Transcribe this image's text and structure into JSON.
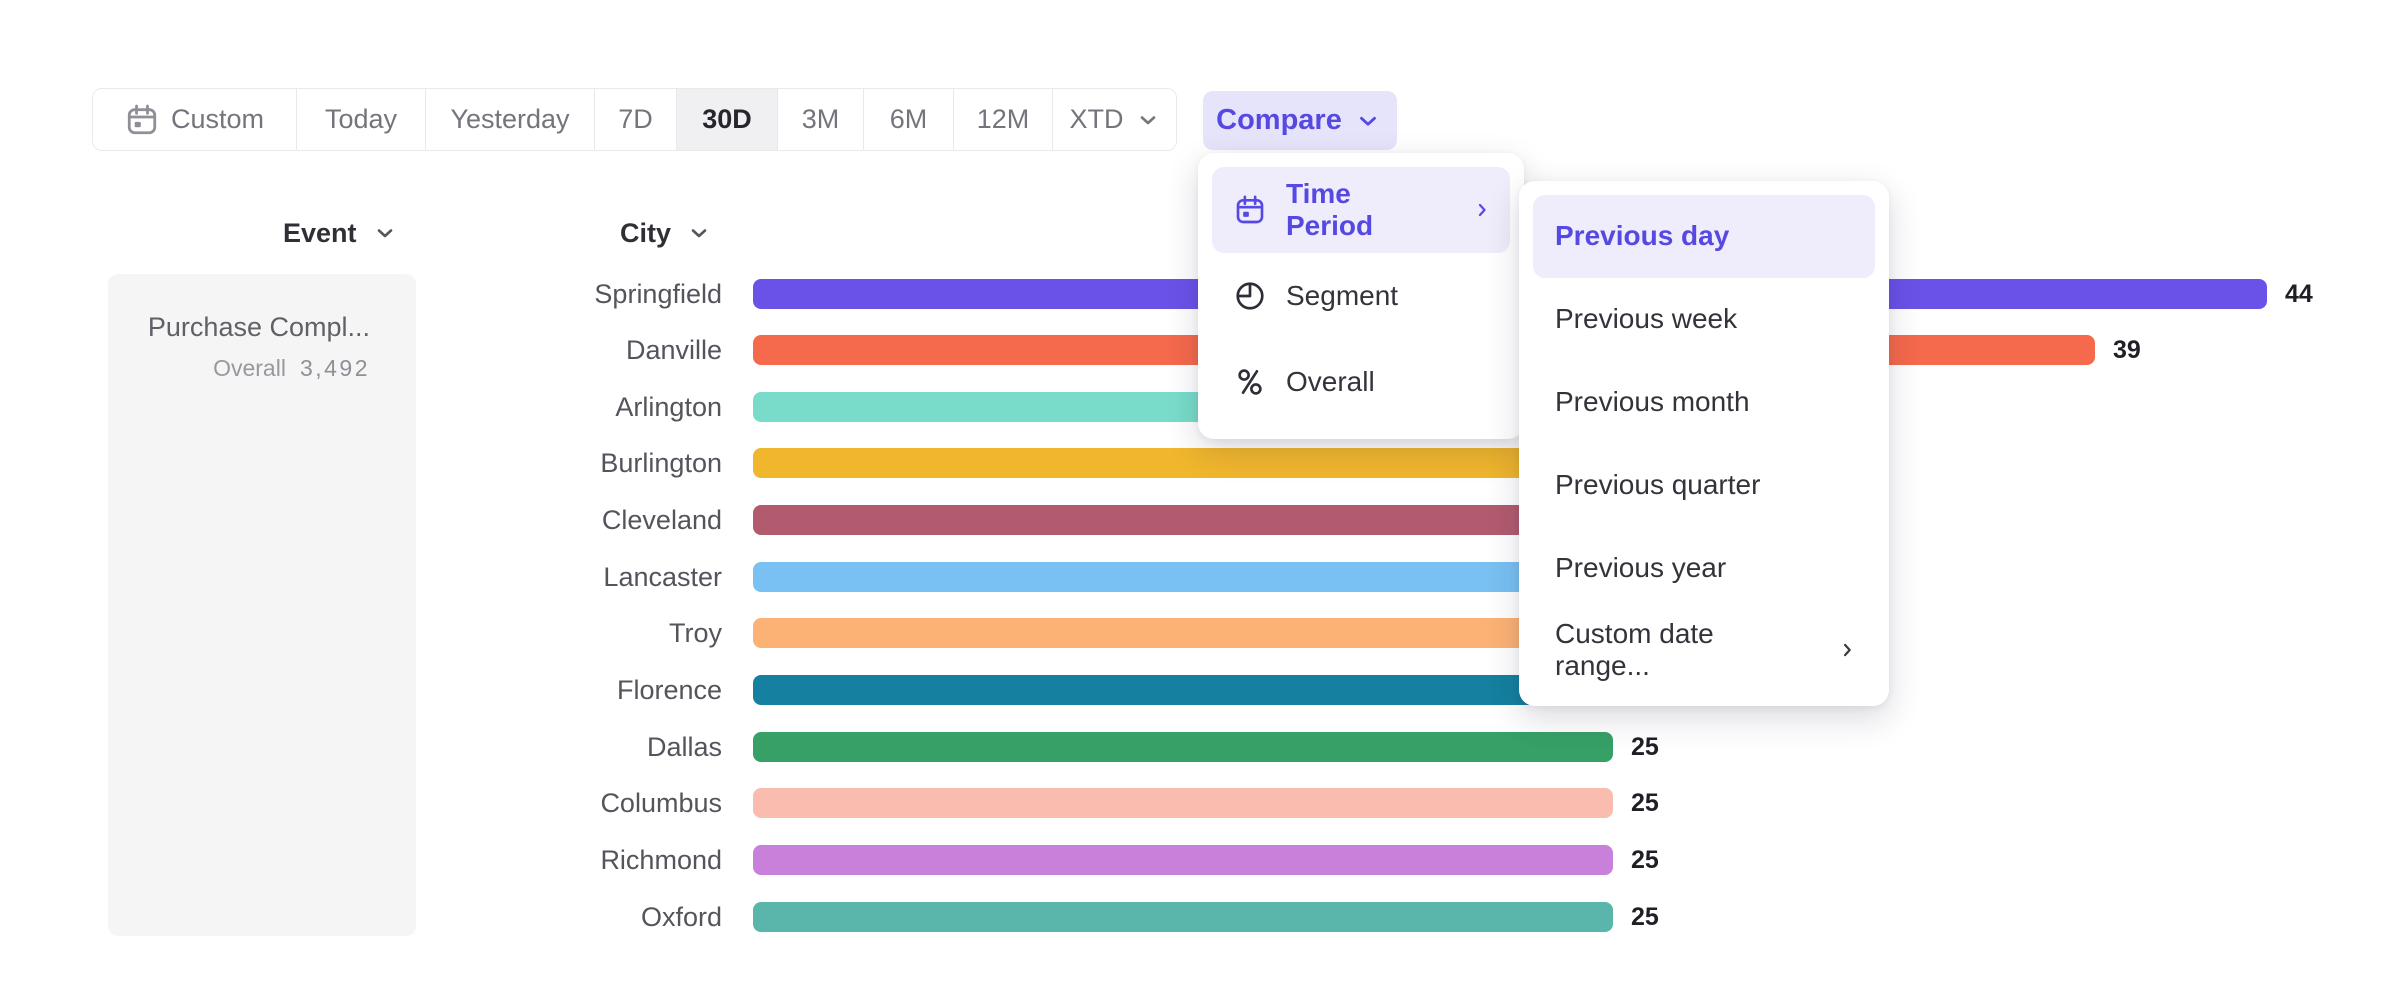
{
  "toolbar": {
    "date_ranges": [
      {
        "label": "Custom",
        "icon": "calendar",
        "selected": false,
        "dropdown": false
      },
      {
        "label": "Today",
        "selected": false,
        "dropdown": false
      },
      {
        "label": "Yesterday",
        "selected": false,
        "dropdown": false
      },
      {
        "label": "7D",
        "selected": false,
        "dropdown": false
      },
      {
        "label": "30D",
        "selected": true,
        "dropdown": false
      },
      {
        "label": "3M",
        "selected": false,
        "dropdown": false
      },
      {
        "label": "6M",
        "selected": false,
        "dropdown": false
      },
      {
        "label": "12M",
        "selected": false,
        "dropdown": false
      },
      {
        "label": "XTD",
        "selected": false,
        "dropdown": true
      }
    ],
    "compare_label": "Compare"
  },
  "event_panel": {
    "header": "Event",
    "event_name": "Purchase Compl...",
    "overall_label": "Overall",
    "overall_value": "3,492"
  },
  "chart_data": {
    "type": "bar",
    "orientation": "horizontal",
    "column_header": "City",
    "value_axis_visible": false,
    "categories": [
      "Springfield",
      "Danville",
      "Arlington",
      "Burlington",
      "Cleveland",
      "Lancaster",
      "Troy",
      "Florence",
      "Dallas",
      "Columbus",
      "Richmond",
      "Oxford"
    ],
    "bars": [
      {
        "city": "Springfield",
        "value": 44,
        "value_label": "44",
        "color": "#6a52e8",
        "end_occluded": false,
        "render_value": 44
      },
      {
        "city": "Danville",
        "value": 39,
        "value_label": "39",
        "color": "#f5694c",
        "end_occluded": false,
        "render_value": 39
      },
      {
        "city": "Arlington",
        "value": null,
        "value_label": "",
        "color": "#79dcca",
        "end_occluded": true,
        "render_value": 32
      },
      {
        "city": "Burlington",
        "value": null,
        "value_label": "",
        "color": "#f0b62d",
        "end_occluded": true,
        "render_value": 31
      },
      {
        "city": "Cleveland",
        "value": null,
        "value_label": "",
        "color": "#b25b6e",
        "end_occluded": true,
        "render_value": 30
      },
      {
        "city": "Lancaster",
        "value": null,
        "value_label": "",
        "color": "#79c1f2",
        "end_occluded": true,
        "render_value": 29
      },
      {
        "city": "Troy",
        "value": null,
        "value_label": "",
        "color": "#fbb274",
        "end_occluded": true,
        "render_value": 28
      },
      {
        "city": "Florence",
        "value": null,
        "value_label": "",
        "color": "#15809f",
        "end_occluded": true,
        "render_value": 27
      },
      {
        "city": "Dallas",
        "value": 25,
        "value_label": "25",
        "color": "#36a066",
        "end_occluded": false,
        "render_value": 25
      },
      {
        "city": "Columbus",
        "value": 25,
        "value_label": "25",
        "color": "#fbbcb0",
        "end_occluded": false,
        "render_value": 25
      },
      {
        "city": "Richmond",
        "value": 25,
        "value_label": "25",
        "color": "#c980da",
        "end_occluded": false,
        "render_value": 25
      },
      {
        "city": "Oxford",
        "value": 25,
        "value_label": "25",
        "color": "#5ab6ab",
        "end_occluded": false,
        "render_value": 25
      }
    ],
    "occluded_values_hidden_by_menu": [
      "Arlington",
      "Burlington",
      "Cleveland",
      "Lancaster",
      "Troy",
      "Florence"
    ]
  },
  "menus": {
    "compare_menu": {
      "items": [
        {
          "label": "Time Period",
          "icon": "calendar",
          "selected": true,
          "submenu": true
        },
        {
          "label": "Segment",
          "icon": "pie-segment",
          "selected": false,
          "submenu": false
        },
        {
          "label": "Overall",
          "icon": "percent",
          "selected": false,
          "submenu": false
        }
      ]
    },
    "time_period_submenu": {
      "items": [
        {
          "label": "Previous day",
          "selected": true,
          "submenu": false
        },
        {
          "label": "Previous week",
          "selected": false,
          "submenu": false
        },
        {
          "label": "Previous month",
          "selected": false,
          "submenu": false
        },
        {
          "label": "Previous quarter",
          "selected": false,
          "submenu": false
        },
        {
          "label": "Previous year",
          "selected": false,
          "submenu": false
        },
        {
          "label": "Custom date range...",
          "selected": false,
          "submenu": true
        }
      ]
    }
  },
  "colors": {
    "accent": "#5549e2",
    "accent_soft_bg": "#efecfb",
    "compare_button_bg": "#e6e4fb",
    "toolbar_border": "#e9e9ec",
    "selected_segment_bg": "#f0f0f2",
    "text_muted": "#74747c",
    "text_dark": "#26262c",
    "card_bg": "#f5f5f6"
  }
}
